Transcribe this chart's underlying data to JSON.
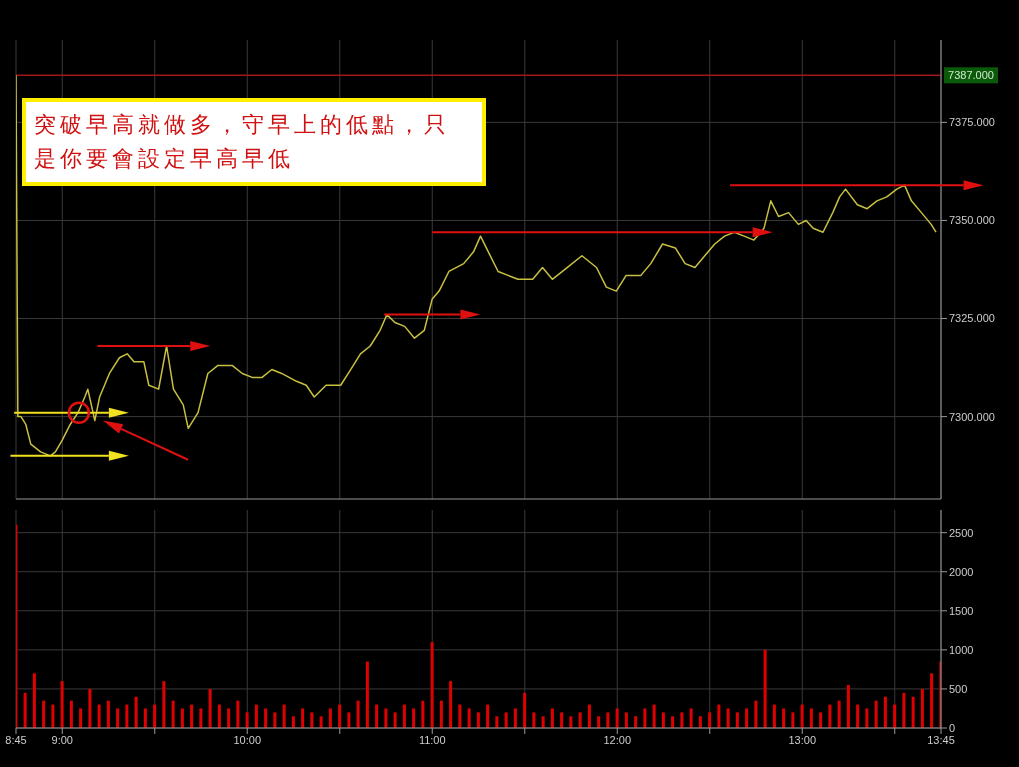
{
  "chart_data": [
    {
      "type": "line",
      "xlim": [
        8.75,
        13.75
      ],
      "xticks": [
        8.75,
        9,
        9.5,
        10,
        10.5,
        11,
        11.5,
        12,
        12.5,
        13,
        13.5,
        13.75
      ],
      "ylim": [
        7279,
        7396
      ],
      "yticks": [
        {
          "value": 7300,
          "label": "7300.000"
        },
        {
          "value": 7325,
          "label": "7325.000"
        },
        {
          "value": 7350,
          "label": "7350.000"
        },
        {
          "value": 7375,
          "label": "7375.000"
        }
      ],
      "grid": true,
      "tick_labels": "y",
      "series": [
        {
          "color": "#c8c040",
          "x": [
            8.75,
            8.76,
            8.777,
            8.803,
            8.83,
            8.883,
            8.936,
            8.963,
            9.0,
            9.043,
            9.085,
            9.122,
            9.138,
            9.176,
            9.202,
            9.255,
            9.309,
            9.351,
            9.388,
            9.441,
            9.468,
            9.521,
            9.564,
            9.601,
            9.654,
            9.681,
            9.734,
            9.787,
            9.84,
            9.92,
            9.973,
            10.027,
            10.08,
            10.133,
            10.186,
            10.266,
            10.319,
            10.362,
            10.426,
            10.505,
            10.559,
            10.612,
            10.665,
            10.718,
            10.755,
            10.798,
            10.851,
            10.904,
            10.957,
            11.0,
            11.037,
            11.09,
            11.17,
            11.223,
            11.261,
            11.303,
            11.356,
            11.41,
            11.463,
            11.543,
            11.596,
            11.649,
            11.729,
            11.809,
            11.888,
            11.941,
            11.995,
            12.048,
            12.128,
            12.181,
            12.245,
            12.314,
            12.367,
            12.42,
            12.473,
            12.527,
            12.58,
            12.633,
            12.686,
            12.739,
            12.793,
            12.83,
            12.872,
            12.926,
            12.979,
            13.021,
            13.059,
            13.112,
            13.165,
            13.202,
            13.234,
            13.298,
            13.351,
            13.404,
            13.457,
            13.511,
            13.553,
            13.59,
            13.644,
            13.697,
            13.723
          ],
          "values": [
            7387,
            7300,
            7300,
            7298,
            7293,
            7291,
            7290,
            7291,
            7294,
            7298,
            7301,
            7305,
            7307,
            7299,
            7305,
            7311,
            7315,
            7316,
            7314,
            7314,
            7308,
            7307,
            7318,
            7307,
            7303,
            7297,
            7301,
            7311,
            7313,
            7313,
            7311,
            7310,
            7310,
            7312,
            7311,
            7309,
            7308,
            7305,
            7308,
            7308,
            7312,
            7316,
            7318,
            7322,
            7326,
            7324,
            7323,
            7320,
            7322,
            7330,
            7332,
            7337,
            7339,
            7342,
            7346,
            7342,
            7337,
            7336,
            7335,
            7335,
            7338,
            7335,
            7338,
            7341,
            7338,
            7333,
            7332,
            7336,
            7336,
            7339,
            7344,
            7343,
            7339,
            7338,
            7341,
            7344,
            7346,
            7347,
            7346,
            7345,
            7348,
            7355,
            7351,
            7352,
            7349,
            7350,
            7348,
            7347,
            7352,
            7356,
            7358,
            7354,
            7353,
            7355,
            7356,
            7358,
            7359,
            7355,
            7352,
            7349,
            7347
          ]
        }
      ],
      "ref_lines": [
        {
          "axis": "y",
          "value": 7387,
          "label": "7387.000",
          "color": "#a01818"
        }
      ],
      "annotations": [
        "突破早高就做多，守早上的低點，只是你要會設定早高早低"
      ]
    },
    {
      "type": "bar",
      "color": "#e00000",
      "xlim": [
        8.75,
        13.75
      ],
      "xticks": [
        {
          "value": 8.75,
          "label": "8:45"
        },
        {
          "value": 9,
          "label": "9:00"
        },
        {
          "value": 9.5,
          "label": null
        },
        {
          "value": 10,
          "label": "10:00"
        },
        {
          "value": 10.5,
          "label": null
        },
        {
          "value": 11,
          "label": "11:00"
        },
        {
          "value": 11.5,
          "label": null
        },
        {
          "value": 12,
          "label": "12:00"
        },
        {
          "value": 12.5,
          "label": null
        },
        {
          "value": 13,
          "label": "13:00"
        },
        {
          "value": 13.5,
          "label": null
        },
        {
          "value": 13.75,
          "label": "13:45"
        }
      ],
      "ylim": [
        0,
        2790
      ],
      "yticks": [
        0,
        500,
        1000,
        1500,
        2000,
        2500
      ],
      "grid": true,
      "x": [
        8.75,
        8.8,
        8.85,
        8.9,
        8.95,
        9,
        9.05,
        9.1,
        9.15,
        9.2,
        9.25,
        9.3,
        9.35,
        9.4,
        9.45,
        9.5,
        9.55,
        9.6,
        9.65,
        9.7,
        9.75,
        9.8,
        9.85,
        9.9,
        9.95,
        10,
        10.05,
        10.1,
        10.15,
        10.2,
        10.25,
        10.3,
        10.35,
        10.4,
        10.45,
        10.5,
        10.55,
        10.6,
        10.65,
        10.7,
        10.75,
        10.8,
        10.85,
        10.9,
        10.95,
        11,
        11.05,
        11.1,
        11.15,
        11.2,
        11.25,
        11.3,
        11.35,
        11.4,
        11.45,
        11.5,
        11.55,
        11.6,
        11.65,
        11.7,
        11.75,
        11.8,
        11.85,
        11.9,
        11.95,
        12,
        12.05,
        12.1,
        12.15,
        12.2,
        12.25,
        12.3,
        12.35,
        12.4,
        12.45,
        12.5,
        12.55,
        12.6,
        12.65,
        12.7,
        12.75,
        12.8,
        12.85,
        12.9,
        12.95,
        13,
        13.05,
        13.1,
        13.15,
        13.2,
        13.25,
        13.3,
        13.35,
        13.4,
        13.45,
        13.5,
        13.55,
        13.6,
        13.65,
        13.7,
        13.75
      ],
      "values": [
        2600,
        450,
        700,
        350,
        300,
        600,
        350,
        250,
        500,
        300,
        350,
        250,
        300,
        400,
        250,
        300,
        600,
        350,
        250,
        300,
        250,
        500,
        300,
        250,
        350,
        200,
        300,
        250,
        200,
        300,
        150,
        250,
        200,
        150,
        250,
        300,
        200,
        350,
        850,
        300,
        250,
        200,
        300,
        250,
        350,
        1100,
        350,
        600,
        300,
        250,
        200,
        300,
        150,
        200,
        250,
        450,
        200,
        150,
        250,
        200,
        150,
        200,
        300,
        150,
        200,
        250,
        200,
        150,
        250,
        300,
        200,
        150,
        200,
        250,
        150,
        200,
        300,
        250,
        200,
        250,
        350,
        1000,
        300,
        250,
        200,
        300,
        250,
        200,
        300,
        350,
        550,
        300,
        250,
        350,
        400,
        300,
        450,
        400,
        500,
        700,
        850
      ]
    }
  ]
}
